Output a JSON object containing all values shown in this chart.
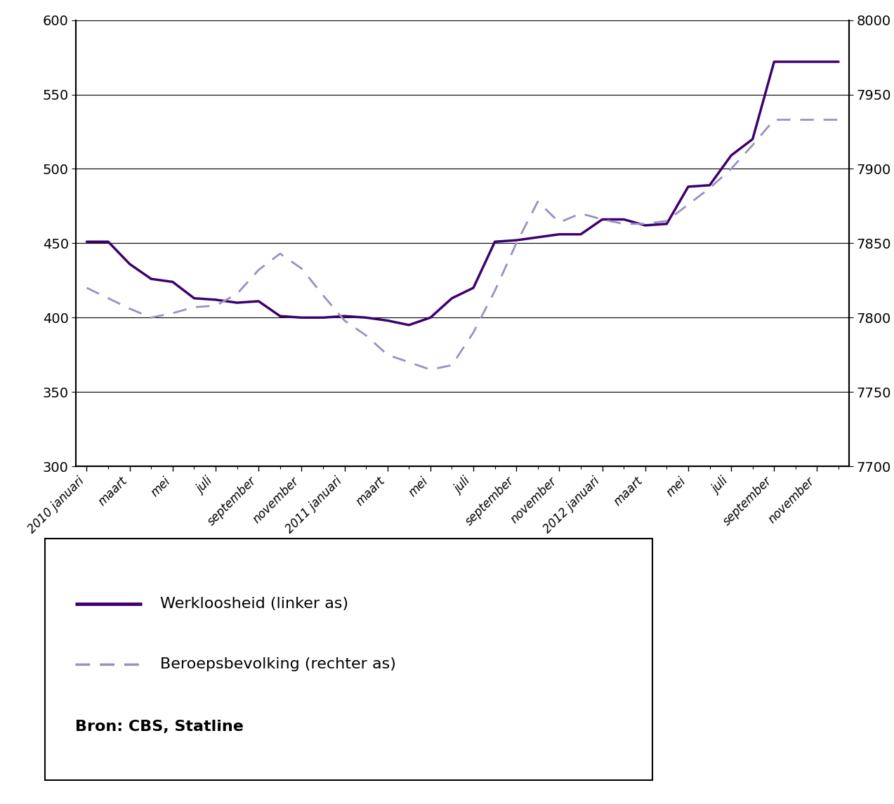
{
  "werkloosheid": [
    451,
    451,
    436,
    426,
    424,
    413,
    412,
    410,
    411,
    401,
    400,
    400,
    401,
    400,
    398,
    395,
    400,
    413,
    420,
    451,
    452,
    454,
    456,
    456,
    466,
    466,
    462,
    463,
    488,
    489,
    509,
    520,
    572,
    572,
    572,
    572
  ],
  "beroepsbevolking_left_equiv": [
    420,
    413,
    406,
    400,
    403,
    407,
    408,
    416,
    432,
    443,
    433,
    415,
    398,
    388,
    375,
    370,
    365,
    368,
    390,
    418,
    450,
    478,
    464,
    470,
    466,
    463,
    463,
    465,
    476,
    487,
    500,
    516,
    533,
    533,
    533,
    533
  ],
  "left_ylim": [
    300,
    600
  ],
  "right_ylim": [
    7700,
    8000
  ],
  "left_yticks": [
    300,
    350,
    400,
    450,
    500,
    550,
    600
  ],
  "right_yticks": [
    7700,
    7750,
    7800,
    7850,
    7900,
    7950,
    8000
  ],
  "xtick_labels": [
    "2010 januari",
    "maart",
    "mei",
    "juli",
    "september",
    "november",
    "2011 januari",
    "maart",
    "mei",
    "juli",
    "september",
    "november",
    "2012 januari",
    "maart",
    "mei",
    "juli",
    "september",
    "november"
  ],
  "line1_color": "#3d006e",
  "line2_color": "#9b8fc0",
  "line1_label": "Werkloosheid (linker as)",
  "line2_label": "Beroepsbevolking (rechter as)",
  "source_text": "Bron: CBS, Statline",
  "linewidth_solid": 2.5,
  "linewidth_dashed": 2.0
}
